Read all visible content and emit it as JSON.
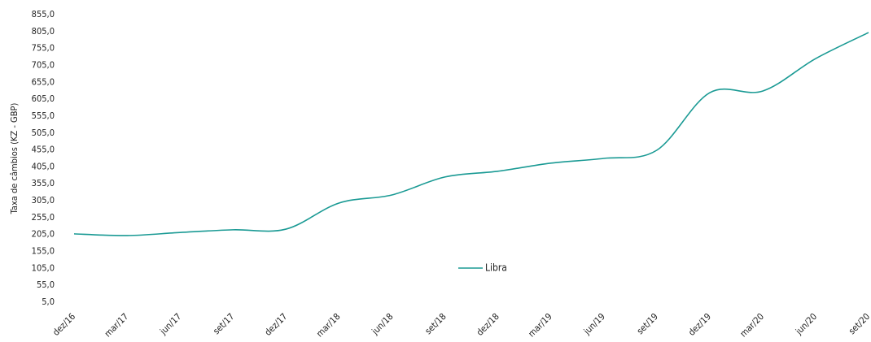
{
  "chart_data": {
    "type": "line",
    "y_label": "Taxa de câmbios (KZ - GBP)",
    "categories": [
      "dez/16",
      "mar/17",
      "jun/17",
      "set/17",
      "dez/17",
      "mar/18",
      "jun/18",
      "set/18",
      "dez/18",
      "mar/19",
      "jun/19",
      "set/19",
      "dez/19",
      "mar/20",
      "jun/20",
      "set/20"
    ],
    "series": [
      {
        "name": "Libra",
        "color": "#1a9a94",
        "values": [
          207,
          202,
          211,
          219,
          221,
          298,
          322,
          375,
          392,
          416,
          430,
          454,
          624,
          629,
          725,
          802
        ]
      }
    ],
    "ylim": [
      5,
      855
    ],
    "yticks": [
      {
        "value": 5,
        "label": "5,0"
      },
      {
        "value": 55,
        "label": "55,0"
      },
      {
        "value": 105,
        "label": "105,0"
      },
      {
        "value": 155,
        "label": "155,0"
      },
      {
        "value": 205,
        "label": "205,0"
      },
      {
        "value": 255,
        "label": "255,0"
      },
      {
        "value": 305,
        "label": "305,0"
      },
      {
        "value": 355,
        "label": "355,0"
      },
      {
        "value": 405,
        "label": "405,0"
      },
      {
        "value": 455,
        "label": "455,0"
      },
      {
        "value": 505,
        "label": "505,0"
      },
      {
        "value": 555,
        "label": "555,0"
      },
      {
        "value": 605,
        "label": "605,0"
      },
      {
        "value": 655,
        "label": "655,0"
      },
      {
        "value": 705,
        "label": "705,0"
      },
      {
        "value": 755,
        "label": "755,0"
      },
      {
        "value": 805,
        "label": "805,0"
      },
      {
        "value": 855,
        "label": "855,0"
      }
    ],
    "grid": false,
    "legend": "center"
  }
}
